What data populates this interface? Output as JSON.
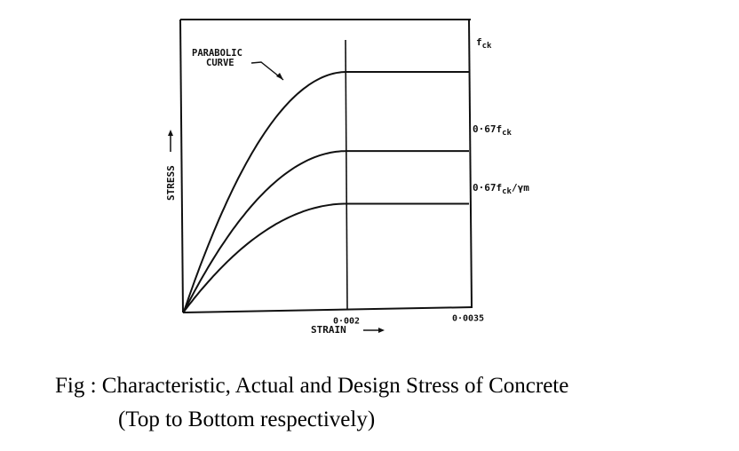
{
  "chart_data": {
    "type": "line",
    "title": "",
    "xlabel": "STRAIN",
    "ylabel": "STRESS",
    "x_ticks": [
      {
        "value": 0.002,
        "label": "0·002"
      },
      {
        "value": 0.0035,
        "label": "0·0035"
      }
    ],
    "xlim": [
      0,
      0.0035
    ],
    "ylim": [
      0,
      1.2
    ],
    "grid": false,
    "series": [
      {
        "label": "f_ck",
        "peak": 1.0,
        "parabolic_until": 0.002,
        "flat_until": 0.0035
      },
      {
        "label": "0·67f_ck",
        "peak": 0.67,
        "parabolic_until": 0.002,
        "flat_until": 0.0035
      },
      {
        "label": "0·67f_ck/γm",
        "peak": 0.45,
        "parabolic_until": 0.002,
        "flat_until": 0.0035
      }
    ],
    "annotations": [
      {
        "text_line1": "PARABOLIC",
        "text_line2": "CURVE",
        "points_to": "top curve"
      }
    ],
    "series_labels": {
      "top": {
        "main": "f",
        "sub": "ck",
        "tail": ""
      },
      "middle": {
        "main": "0·67f",
        "sub": "ck",
        "tail": ""
      },
      "bottom": {
        "main": "0·67f",
        "sub": "ck",
        "tail": "/γm"
      }
    }
  },
  "caption": {
    "line1": "Fig : Characteristic, Actual and Design Stress of  Concrete",
    "line2": "(Top to Bottom respectively)"
  }
}
